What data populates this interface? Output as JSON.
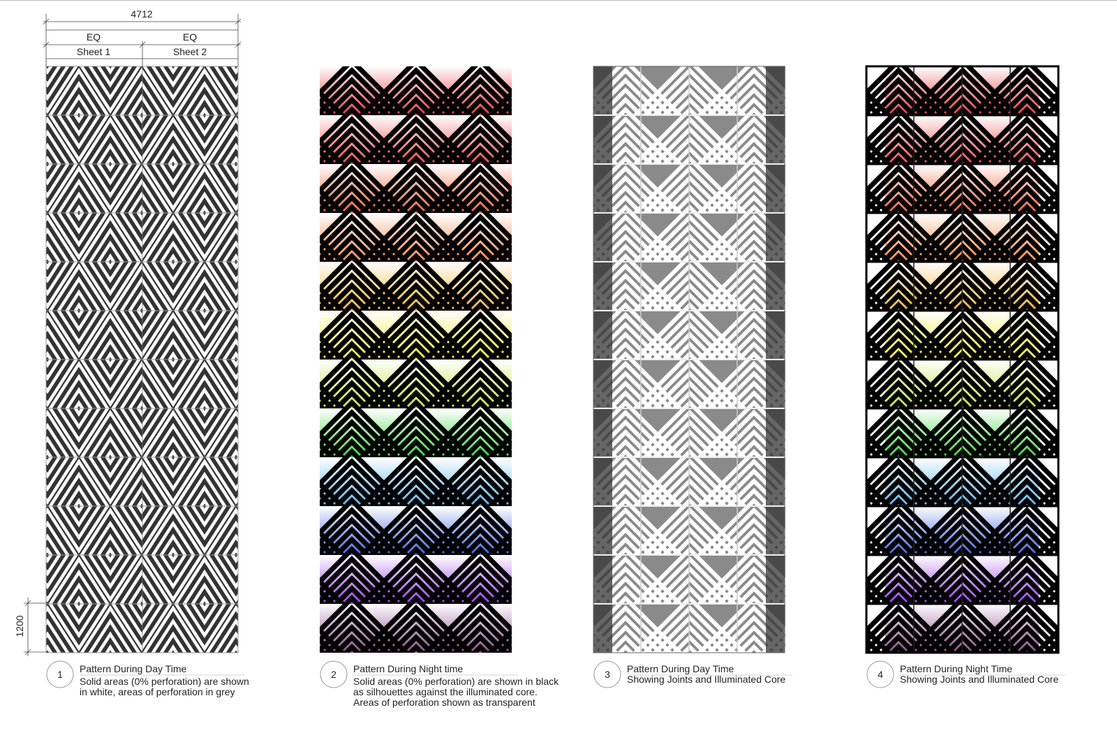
{
  "dimensions": {
    "overall": "4712",
    "eq_left": "EQ",
    "eq_right": "EQ",
    "sheet_1": "Sheet 1",
    "sheet_2": "Sheet 2",
    "row_height": "1200"
  },
  "panels": [
    {
      "number": "1",
      "title": "Pattern During Day Time",
      "description": [
        "Solid areas (0% perforation) are shown",
        "in white, areas of perforation in grey"
      ]
    },
    {
      "number": "2",
      "title": "Pattern During Night time",
      "description": [
        "Solid areas (0% perforation) are shown in black",
        "as silhouettes against the illuminated core.",
        "Areas of perforation shown as transparent"
      ]
    },
    {
      "number": "3",
      "title": "Pattern During Day Time",
      "description": [
        "Showing Joints and Illuminated Core"
      ]
    },
    {
      "number": "4",
      "title": "Pattern During Night Time",
      "description": [
        "Showing Joints and Illuminated Core"
      ]
    }
  ]
}
